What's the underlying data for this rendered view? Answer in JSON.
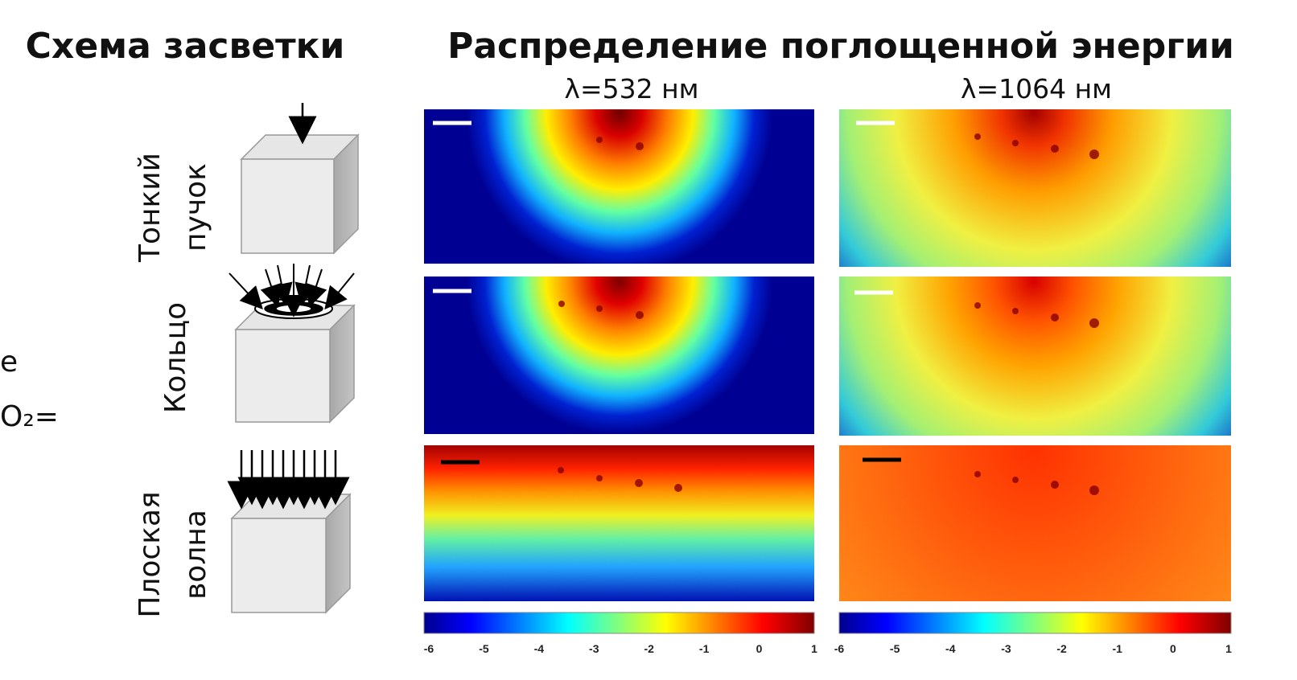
{
  "header": {
    "left_title": "Схема засветки",
    "right_title": "Распределение поглощенной энергии"
  },
  "columns": [
    {
      "label": "λ=532 нм"
    },
    {
      "label": "λ=1064 нм"
    }
  ],
  "rows": [
    {
      "label_lines": [
        "Тонкий",
        "пучок"
      ]
    },
    {
      "label_lines": [
        "Кольцо"
      ]
    },
    {
      "label_lines": [
        "Плоская",
        "волна"
      ]
    }
  ],
  "left_fragments": [
    "е",
    "O₂="
  ],
  "colorbars": [
    {
      "ticks": [
        -6,
        -5,
        -4,
        -3,
        -2,
        -1,
        0,
        1
      ]
    },
    {
      "ticks": [
        -6,
        -5,
        -4,
        -3,
        -2,
        -1,
        0,
        1
      ]
    }
  ]
}
